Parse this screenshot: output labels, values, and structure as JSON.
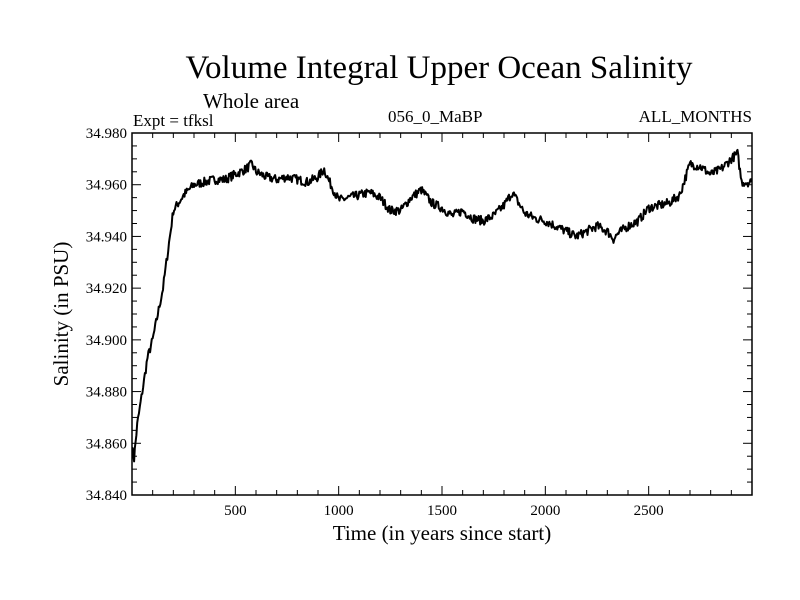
{
  "chart_data": {
    "type": "line",
    "title": "Volume Integral Upper Ocean Salinity",
    "subtitle": "Whole area",
    "left_note": "Expt = tfksl",
    "center_note": "056_0_MaBP",
    "right_note": "ALL_MONTHS",
    "xlabel": "Time (in years since start)",
    "ylabel": "Salinity (in PSU)",
    "xlim": [
      0,
      3000
    ],
    "ylim": [
      34.84,
      34.98
    ],
    "x_ticks": [
      500,
      1000,
      1500,
      2000,
      2500
    ],
    "x_tick_labels": [
      "500",
      "1000",
      "1500",
      "2000",
      "2500"
    ],
    "y_ticks": [
      34.84,
      34.86,
      34.88,
      34.9,
      34.92,
      34.94,
      34.96,
      34.98
    ],
    "y_tick_labels": [
      "34.840",
      "34.860",
      "34.880",
      "34.900",
      "34.920",
      "34.940",
      "34.960",
      "34.980"
    ],
    "grid": false,
    "series": [
      {
        "name": "salinity",
        "color": "#000000",
        "x": [
          0,
          10,
          25,
          50,
          75,
          100,
          125,
          150,
          175,
          200,
          250,
          300,
          350,
          400,
          450,
          500,
          550,
          580,
          600,
          650,
          700,
          750,
          800,
          850,
          900,
          930,
          950,
          1000,
          1050,
          1100,
          1150,
          1200,
          1250,
          1300,
          1350,
          1400,
          1450,
          1500,
          1550,
          1600,
          1650,
          1700,
          1750,
          1800,
          1840,
          1900,
          1950,
          2000,
          2050,
          2100,
          2150,
          2200,
          2250,
          2300,
          2330,
          2350,
          2400,
          2450,
          2500,
          2550,
          2600,
          2650,
          2700,
          2750,
          2800,
          2850,
          2900,
          2930,
          2950,
          3000
        ],
        "values": [
          34.858,
          34.854,
          34.867,
          34.88,
          34.893,
          34.9,
          34.91,
          34.92,
          34.935,
          34.95,
          34.956,
          34.96,
          34.961,
          34.962,
          34.962,
          34.964,
          34.966,
          34.968,
          34.965,
          34.963,
          34.962,
          34.963,
          34.962,
          34.961,
          34.963,
          34.966,
          34.962,
          34.954,
          34.955,
          34.956,
          34.957,
          34.955,
          34.95,
          34.95,
          34.955,
          34.958,
          34.953,
          34.951,
          34.948,
          34.95,
          34.947,
          34.946,
          34.948,
          34.952,
          34.957,
          34.949,
          34.947,
          34.946,
          34.944,
          34.942,
          34.94,
          34.942,
          34.944,
          34.942,
          34.939,
          34.941,
          34.944,
          34.946,
          34.951,
          34.952,
          34.953,
          34.956,
          34.968,
          34.967,
          34.964,
          34.966,
          34.97,
          34.972,
          34.961,
          34.961
        ]
      }
    ]
  }
}
